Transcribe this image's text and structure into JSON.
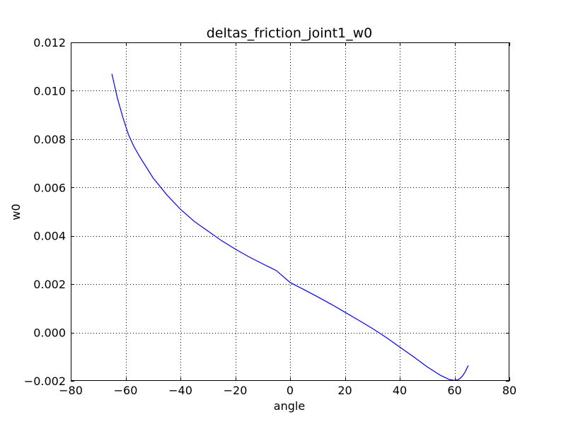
{
  "chart_data": {
    "type": "line",
    "title": "deltas_friction_joint1_w0",
    "xlabel": "angle",
    "ylabel": "w0",
    "xlim": [
      -80,
      80
    ],
    "ylim": [
      -0.002,
      0.012
    ],
    "xticks": [
      -80,
      -60,
      -40,
      -20,
      0,
      20,
      40,
      60,
      80
    ],
    "xtick_labels": [
      "−80",
      "−60",
      "−40",
      "−20",
      "0",
      "20",
      "40",
      "60",
      "80"
    ],
    "yticks": [
      -0.002,
      0.0,
      0.002,
      0.004,
      0.006,
      0.008,
      0.01,
      0.012
    ],
    "ytick_labels": [
      "−0.002",
      "0.000",
      "0.002",
      "0.004",
      "0.006",
      "0.008",
      "0.010",
      "0.012"
    ],
    "grid": true,
    "series": [
      {
        "color": "#0000ff",
        "x": [
          -65,
          -63,
          -61,
          -59,
          -57,
          -55,
          -50,
          -45,
          -40,
          -35,
          -30,
          -25,
          -20,
          -15,
          -10,
          -5,
          0,
          5,
          10,
          15,
          20,
          25,
          30,
          35,
          40,
          45,
          50,
          55,
          58,
          60,
          61,
          62,
          63,
          64,
          65
        ],
        "y": [
          0.0107,
          0.0097,
          0.0089,
          0.0082,
          0.0077,
          0.0073,
          0.0064,
          0.0057,
          0.0051,
          0.0046,
          0.0042,
          0.0038,
          0.00345,
          0.00313,
          0.00284,
          0.00256,
          0.00207,
          0.00178,
          0.00148,
          0.00117,
          0.00084,
          0.00051,
          0.00017,
          -0.0002,
          -0.0006,
          -0.001,
          -0.00142,
          -0.00178,
          -0.00194,
          -0.00198,
          -0.00196,
          -0.0019,
          -0.00178,
          -0.0016,
          -0.00136
        ]
      }
    ]
  }
}
